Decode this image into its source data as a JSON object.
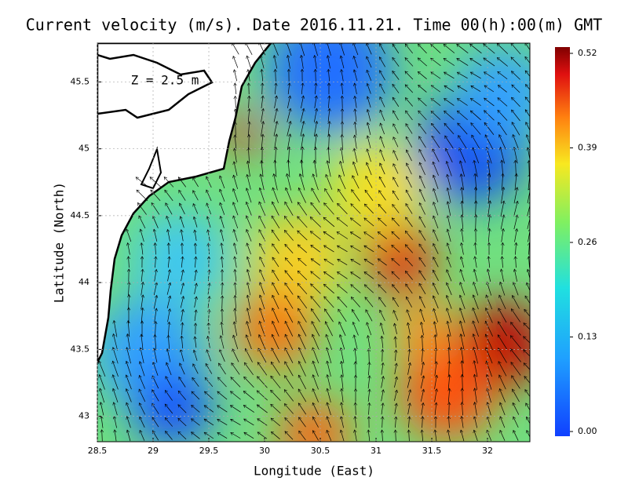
{
  "chart_data": {
    "type": "vector-field",
    "title": "Current velocity (m/s). Date 2016.11.21. Time 00(h):00(m) GMT",
    "x_label": "Longitude (East)",
    "y_label": "Latitude (North)",
    "annotation": "Z = 2.5 m",
    "xlim": [
      28.5,
      32.38
    ],
    "xticks": [
      28.5,
      29,
      29.5,
      30,
      30.5,
      31,
      31.5,
      32
    ],
    "ylim": [
      42.81,
      45.79
    ],
    "yticks": [
      43,
      43.5,
      44,
      44.5,
      45,
      45.5
    ],
    "colorbar": {
      "lim": [
        0,
        0.52
      ],
      "ticks": [
        {
          "value": 0,
          "label": "0.00"
        },
        0.13,
        0.26,
        0.39,
        0.52
      ]
    },
    "grid": true
  }
}
